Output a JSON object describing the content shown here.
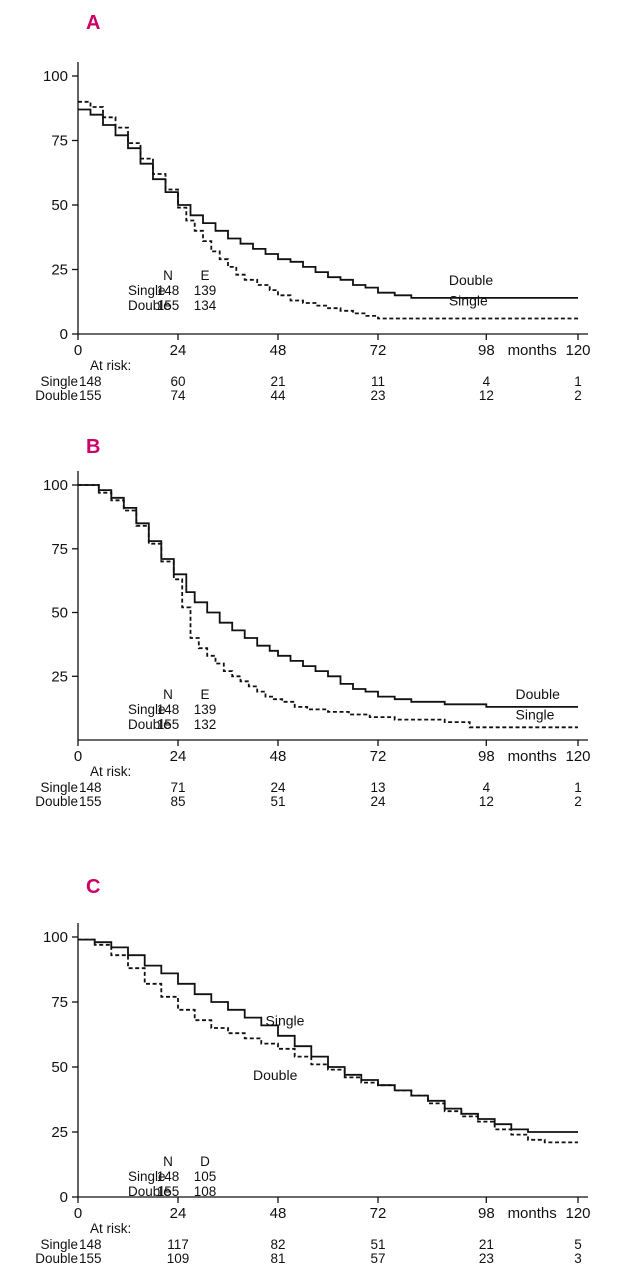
{
  "figure": {
    "accent_color": "#cc0066",
    "line_color": "#111111"
  },
  "chart_data": [
    {
      "type": "line",
      "subtype": "kaplan-meier-step",
      "panel_label": "A",
      "xlabel": "months",
      "ylabel": "",
      "xlim": [
        0,
        120
      ],
      "ylim": [
        0,
        100
      ],
      "x_ticks": [
        0,
        24,
        48,
        72,
        98,
        120
      ],
      "y_ticks": [
        0,
        25,
        50,
        75,
        100
      ],
      "grid": false,
      "series": [
        {
          "name": "Single",
          "line": "dashed",
          "points": [
            [
              0,
              90
            ],
            [
              3,
              88
            ],
            [
              6,
              84
            ],
            [
              9,
              80
            ],
            [
              12,
              74
            ],
            [
              15,
              68
            ],
            [
              18,
              62
            ],
            [
              21,
              56
            ],
            [
              24,
              49
            ],
            [
              26,
              44
            ],
            [
              28,
              40
            ],
            [
              30,
              36
            ],
            [
              32,
              32
            ],
            [
              34,
              29
            ],
            [
              36,
              26
            ],
            [
              38,
              23
            ],
            [
              40,
              21
            ],
            [
              43,
              19
            ],
            [
              46,
              17
            ],
            [
              48,
              15
            ],
            [
              51,
              13
            ],
            [
              54,
              12
            ],
            [
              57,
              11
            ],
            [
              60,
              10
            ],
            [
              63,
              9
            ],
            [
              66,
              8
            ],
            [
              69,
              7
            ],
            [
              72,
              6
            ],
            [
              120,
              6
            ]
          ]
        },
        {
          "name": "Double",
          "line": "solid",
          "points": [
            [
              0,
              87
            ],
            [
              3,
              85
            ],
            [
              6,
              81
            ],
            [
              9,
              77
            ],
            [
              12,
              72
            ],
            [
              15,
              66
            ],
            [
              18,
              60
            ],
            [
              21,
              55
            ],
            [
              24,
              50
            ],
            [
              27,
              46
            ],
            [
              30,
              43
            ],
            [
              33,
              40
            ],
            [
              36,
              37
            ],
            [
              39,
              35
            ],
            [
              42,
              33
            ],
            [
              45,
              31
            ],
            [
              48,
              29
            ],
            [
              51,
              28
            ],
            [
              54,
              26
            ],
            [
              57,
              24
            ],
            [
              60,
              22
            ],
            [
              63,
              21
            ],
            [
              66,
              19
            ],
            [
              69,
              18
            ],
            [
              72,
              16
            ],
            [
              76,
              15
            ],
            [
              80,
              14
            ],
            [
              120,
              14
            ]
          ]
        }
      ],
      "curve_labels": [
        {
          "text": "Double",
          "x": 89,
          "y": 19
        },
        {
          "text": "Single",
          "x": 89,
          "y": 11
        }
      ],
      "stats_table": {
        "columns": [
          "N",
          "E"
        ],
        "rows": [
          {
            "name": "Single",
            "values": [
              148,
              139
            ]
          },
          {
            "name": "Double",
            "values": [
              155,
              134
            ]
          }
        ],
        "y_pct": 21
      },
      "at_risk": {
        "title": "At risk:",
        "times": [
          0,
          24,
          48,
          72,
          98,
          120
        ],
        "rows": [
          {
            "name": "Single",
            "counts": [
              148,
              60,
              21,
              11,
              4,
              1
            ]
          },
          {
            "name": "Double",
            "counts": [
              155,
              74,
              44,
              23,
              12,
              2
            ]
          }
        ]
      }
    },
    {
      "type": "line",
      "subtype": "kaplan-meier-step",
      "panel_label": "B",
      "xlabel": "months",
      "ylabel": "",
      "xlim": [
        0,
        120
      ],
      "ylim": [
        0,
        100
      ],
      "x_ticks": [
        0,
        24,
        48,
        72,
        98,
        120
      ],
      "y_ticks": [
        25,
        50,
        75,
        100
      ],
      "grid": false,
      "series": [
        {
          "name": "Single",
          "line": "dashed",
          "points": [
            [
              0,
              100
            ],
            [
              5,
              97
            ],
            [
              8,
              94
            ],
            [
              11,
              90
            ],
            [
              14,
              84
            ],
            [
              17,
              77
            ],
            [
              20,
              70
            ],
            [
              23,
              63
            ],
            [
              25,
              52
            ],
            [
              27,
              40
            ],
            [
              29,
              36
            ],
            [
              31,
              33
            ],
            [
              33,
              30
            ],
            [
              35,
              27
            ],
            [
              37,
              25
            ],
            [
              39,
              23
            ],
            [
              41,
              21
            ],
            [
              43,
              19
            ],
            [
              45,
              17
            ],
            [
              47,
              16
            ],
            [
              49,
              15
            ],
            [
              52,
              13
            ],
            [
              55,
              12
            ],
            [
              60,
              11
            ],
            [
              65,
              10
            ],
            [
              70,
              9
            ],
            [
              76,
              8
            ],
            [
              88,
              7
            ],
            [
              94,
              5
            ],
            [
              120,
              5
            ]
          ]
        },
        {
          "name": "Double",
          "line": "solid",
          "points": [
            [
              0,
              100
            ],
            [
              5,
              98
            ],
            [
              8,
              95
            ],
            [
              11,
              91
            ],
            [
              14,
              85
            ],
            [
              17,
              78
            ],
            [
              20,
              71
            ],
            [
              23,
              65
            ],
            [
              26,
              58
            ],
            [
              28,
              54
            ],
            [
              31,
              50
            ],
            [
              34,
              46
            ],
            [
              37,
              43
            ],
            [
              40,
              40
            ],
            [
              43,
              37
            ],
            [
              46,
              35
            ],
            [
              48,
              33
            ],
            [
              51,
              31
            ],
            [
              54,
              29
            ],
            [
              57,
              27
            ],
            [
              60,
              25
            ],
            [
              63,
              22
            ],
            [
              66,
              20
            ],
            [
              69,
              19
            ],
            [
              72,
              17
            ],
            [
              76,
              16
            ],
            [
              80,
              15
            ],
            [
              88,
              14
            ],
            [
              98,
              13
            ],
            [
              120,
              13
            ]
          ]
        }
      ],
      "curve_labels": [
        {
          "text": "Double",
          "x": 105,
          "y": 16
        },
        {
          "text": "Single",
          "x": 105,
          "y": 8
        }
      ],
      "stats_table": {
        "columns": [
          "N",
          "E"
        ],
        "rows": [
          {
            "name": "Single",
            "values": [
              148,
              139
            ]
          },
          {
            "name": "Double",
            "values": [
              155,
              132
            ]
          }
        ],
        "y_pct": 16
      },
      "at_risk": {
        "title": "At risk:",
        "times": [
          0,
          24,
          48,
          72,
          98,
          120
        ],
        "rows": [
          {
            "name": "Single",
            "counts": [
              148,
              71,
              24,
              13,
              4,
              1
            ]
          },
          {
            "name": "Double",
            "counts": [
              155,
              85,
              51,
              24,
              12,
              2
            ]
          }
        ]
      }
    },
    {
      "type": "line",
      "subtype": "kaplan-meier-step",
      "panel_label": "C",
      "xlabel": "months",
      "ylabel": "",
      "xlim": [
        0,
        120
      ],
      "ylim": [
        0,
        100
      ],
      "x_ticks": [
        0,
        24,
        48,
        72,
        98,
        120
      ],
      "y_ticks": [
        0,
        25,
        50,
        75,
        100
      ],
      "grid": false,
      "series": [
        {
          "name": "Double",
          "line": "dashed",
          "points": [
            [
              0,
              99
            ],
            [
              4,
              97
            ],
            [
              8,
              93
            ],
            [
              12,
              88
            ],
            [
              16,
              82
            ],
            [
              20,
              77
            ],
            [
              24,
              72
            ],
            [
              28,
              68
            ],
            [
              32,
              65
            ],
            [
              36,
              63
            ],
            [
              40,
              61
            ],
            [
              44,
              59
            ],
            [
              48,
              57
            ],
            [
              52,
              54
            ],
            [
              56,
              51
            ],
            [
              60,
              49
            ],
            [
              64,
              46
            ],
            [
              68,
              44
            ],
            [
              72,
              43
            ],
            [
              76,
              41
            ],
            [
              80,
              39
            ],
            [
              84,
              36
            ],
            [
              88,
              33
            ],
            [
              92,
              31
            ],
            [
              96,
              29
            ],
            [
              100,
              26
            ],
            [
              104,
              24
            ],
            [
              108,
              22
            ],
            [
              112,
              21
            ],
            [
              120,
              21
            ]
          ]
        },
        {
          "name": "Single",
          "line": "solid",
          "points": [
            [
              0,
              99
            ],
            [
              4,
              98
            ],
            [
              8,
              96
            ],
            [
              12,
              93
            ],
            [
              16,
              89
            ],
            [
              20,
              86
            ],
            [
              24,
              82
            ],
            [
              28,
              78
            ],
            [
              32,
              75
            ],
            [
              36,
              72
            ],
            [
              40,
              69
            ],
            [
              44,
              66
            ],
            [
              48,
              62
            ],
            [
              52,
              58
            ],
            [
              56,
              54
            ],
            [
              60,
              50
            ],
            [
              64,
              47
            ],
            [
              68,
              45
            ],
            [
              72,
              43
            ],
            [
              76,
              41
            ],
            [
              80,
              39
            ],
            [
              84,
              37
            ],
            [
              88,
              34
            ],
            [
              92,
              32
            ],
            [
              96,
              30
            ],
            [
              100,
              28
            ],
            [
              104,
              26
            ],
            [
              108,
              25
            ],
            [
              120,
              25
            ]
          ]
        }
      ],
      "curve_labels": [
        {
          "text": "Single",
          "x": 45,
          "y": 66
        },
        {
          "text": "Double",
          "x": 42,
          "y": 45
        }
      ],
      "stats_table": {
        "columns": [
          "N",
          "D"
        ],
        "rows": [
          {
            "name": "Single",
            "values": [
              148,
              105
            ]
          },
          {
            "name": "Double",
            "values": [
              155,
              108
            ]
          }
        ],
        "y_pct": 12
      },
      "at_risk": {
        "title": "At risk:",
        "times": [
          0,
          24,
          48,
          72,
          98,
          120
        ],
        "rows": [
          {
            "name": "Single",
            "counts": [
              148,
              117,
              82,
              51,
              21,
              5
            ]
          },
          {
            "name": "Double",
            "counts": [
              155,
              109,
              81,
              57,
              23,
              3
            ]
          }
        ]
      }
    }
  ]
}
